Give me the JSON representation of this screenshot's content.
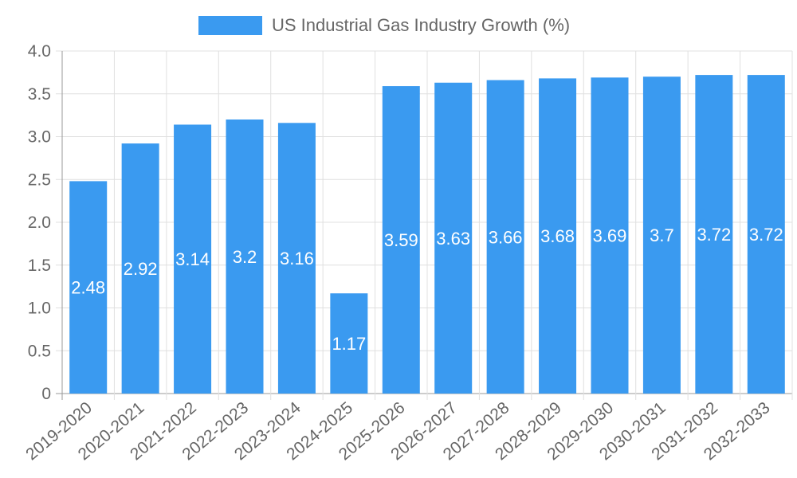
{
  "chart_data": {
    "type": "bar",
    "legend": {
      "label": "US Industrial Gas Industry Growth (%)",
      "placement": "top-center"
    },
    "categories": [
      "2019-2020",
      "2020-2021",
      "2021-2022",
      "2022-2023",
      "2023-2024",
      "2024-2025",
      "2025-2026",
      "2026-2027",
      "2027-2028",
      "2028-2029",
      "2029-2030",
      "2030-2031",
      "2031-2032",
      "2032-2033"
    ],
    "series": [
      {
        "name": "US Industrial Gas Industry Growth (%)",
        "values": [
          2.48,
          2.92,
          3.14,
          3.2,
          3.16,
          1.17,
          3.59,
          3.63,
          3.66,
          3.68,
          3.69,
          3.7,
          3.72,
          3.72
        ]
      }
    ],
    "data_labels": [
      "2.48",
      "2.92",
      "3.14",
      "3.2",
      "3.16",
      "1.17",
      "3.59",
      "3.63",
      "3.66",
      "3.68",
      "3.69",
      "3.7",
      "3.72",
      "3.72"
    ],
    "y_ticks": [
      "0",
      "0.5",
      "1.0",
      "1.5",
      "2.0",
      "2.5",
      "3.0",
      "3.5",
      "4.0"
    ],
    "ylim": [
      0,
      4.0
    ],
    "grid": true,
    "colors": {
      "bar": "#3a9af0",
      "grid": "#e0e0e0",
      "axis": "#999999",
      "tick_text": "#666666",
      "data_label": "#ffffff"
    }
  }
}
